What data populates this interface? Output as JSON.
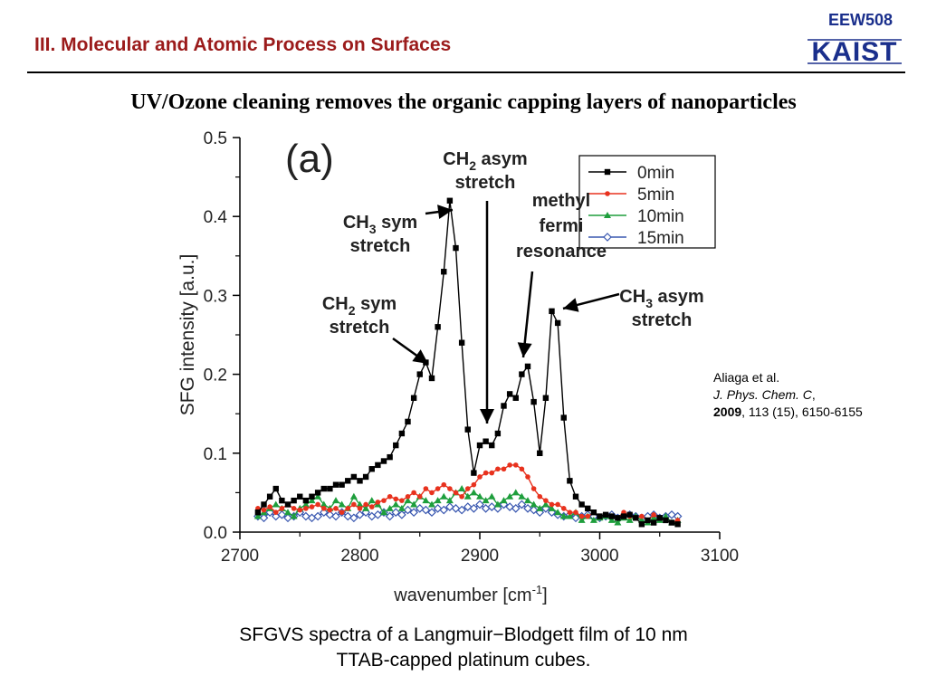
{
  "header": {
    "course_code": "EEW508",
    "logo_text": "KAIST",
    "section_title": "III. Molecular and Atomic Process on Surfaces",
    "brand_color": "#1a2f8c",
    "section_color": "#9b1b1b"
  },
  "headline": "UV/Ozone cleaning removes the organic capping layers of nanoparticles",
  "citation": {
    "authors": "Aliaga et al.",
    "journal": "J. Phys. Chem. C",
    "year": "2009",
    "details": ", 113 (15), 6150-6155"
  },
  "caption": {
    "line1": "SFGVS spectra of a Langmuir−Blodgett film of 10 nm",
    "line2": "TTAB-capped platinum cubes."
  },
  "chart_data": {
    "type": "line",
    "panel_label": "(a)",
    "xlabel": "wavenumber [cm",
    "xlabel_sup": "-1",
    "xlabel_end": "]",
    "ylabel": "SFG intensity [a.u.]",
    "xlim": [
      2700,
      3100
    ],
    "ylim": [
      0.0,
      0.5
    ],
    "xticks": [
      "2700",
      "2800",
      "2900",
      "3000",
      "3100"
    ],
    "yticks": [
      "0.0",
      "0.1",
      "0.2",
      "0.3",
      "0.4",
      "0.5"
    ],
    "grid": false,
    "legend_position": "top-right",
    "x": [
      2715,
      2720,
      2725,
      2730,
      2735,
      2740,
      2745,
      2750,
      2755,
      2760,
      2765,
      2770,
      2775,
      2780,
      2785,
      2790,
      2795,
      2800,
      2805,
      2810,
      2815,
      2820,
      2825,
      2830,
      2835,
      2840,
      2845,
      2850,
      2855,
      2860,
      2865,
      2870,
      2875,
      2880,
      2885,
      2890,
      2895,
      2900,
      2905,
      2910,
      2915,
      2920,
      2925,
      2930,
      2935,
      2940,
      2945,
      2950,
      2955,
      2960,
      2965,
      2970,
      2975,
      2980,
      2985,
      2990,
      2995,
      3000,
      3005,
      3010,
      3015,
      3020,
      3025,
      3030,
      3035,
      3040,
      3045,
      3050,
      3055,
      3060,
      3065
    ],
    "series": [
      {
        "name": "0min",
        "color": "#000000",
        "marker": "square",
        "values": [
          0.025,
          0.035,
          0.045,
          0.055,
          0.04,
          0.035,
          0.04,
          0.045,
          0.04,
          0.045,
          0.05,
          0.055,
          0.055,
          0.06,
          0.06,
          0.065,
          0.07,
          0.065,
          0.07,
          0.08,
          0.085,
          0.09,
          0.095,
          0.11,
          0.125,
          0.14,
          0.17,
          0.2,
          0.215,
          0.195,
          0.26,
          0.33,
          0.42,
          0.36,
          0.24,
          0.13,
          0.075,
          0.11,
          0.115,
          0.11,
          0.125,
          0.16,
          0.175,
          0.17,
          0.2,
          0.21,
          0.165,
          0.1,
          0.17,
          0.28,
          0.265,
          0.145,
          0.065,
          0.045,
          0.035,
          0.03,
          0.025,
          0.02,
          0.022,
          0.02,
          0.018,
          0.02,
          0.022,
          0.018,
          0.01,
          0.015,
          0.012,
          0.018,
          0.015,
          0.012,
          0.01
        ]
      },
      {
        "name": "5min",
        "color": "#e8321e",
        "marker": "circle",
        "values": [
          0.03,
          0.028,
          0.032,
          0.025,
          0.03,
          0.035,
          0.03,
          0.028,
          0.03,
          0.032,
          0.035,
          0.03,
          0.028,
          0.03,
          0.025,
          0.03,
          0.035,
          0.03,
          0.035,
          0.032,
          0.038,
          0.04,
          0.045,
          0.042,
          0.04,
          0.045,
          0.05,
          0.045,
          0.055,
          0.05,
          0.055,
          0.06,
          0.055,
          0.05,
          0.045,
          0.055,
          0.06,
          0.07,
          0.075,
          0.075,
          0.08,
          0.08,
          0.085,
          0.085,
          0.08,
          0.07,
          0.055,
          0.045,
          0.04,
          0.035,
          0.035,
          0.03,
          0.025,
          0.025,
          0.02,
          0.02,
          0.025,
          0.02,
          0.022,
          0.02,
          0.018,
          0.025,
          0.02,
          0.018,
          0.02,
          0.015,
          0.022,
          0.018,
          0.015,
          0.012,
          0.015
        ]
      },
      {
        "name": "10min",
        "color": "#1e9e3c",
        "marker": "triangle",
        "values": [
          0.02,
          0.025,
          0.03,
          0.035,
          0.03,
          0.025,
          0.02,
          0.03,
          0.035,
          0.04,
          0.045,
          0.035,
          0.03,
          0.04,
          0.035,
          0.03,
          0.045,
          0.035,
          0.03,
          0.04,
          0.035,
          0.025,
          0.03,
          0.035,
          0.03,
          0.04,
          0.035,
          0.045,
          0.04,
          0.035,
          0.04,
          0.045,
          0.04,
          0.05,
          0.055,
          0.045,
          0.05,
          0.045,
          0.04,
          0.045,
          0.035,
          0.04,
          0.045,
          0.05,
          0.045,
          0.04,
          0.035,
          0.03,
          0.035,
          0.03,
          0.025,
          0.02,
          0.02,
          0.025,
          0.015,
          0.02,
          0.015,
          0.018,
          0.02,
          0.015,
          0.012,
          0.018,
          0.015,
          0.02,
          0.015,
          0.012,
          0.018,
          0.015,
          0.02,
          0.012,
          0.015
        ]
      },
      {
        "name": "15min",
        "color": "#3a58b0",
        "marker": "diamond-open",
        "values": [
          0.02,
          0.018,
          0.025,
          0.02,
          0.022,
          0.018,
          0.02,
          0.025,
          0.02,
          0.018,
          0.02,
          0.025,
          0.022,
          0.02,
          0.025,
          0.02,
          0.018,
          0.022,
          0.025,
          0.02,
          0.022,
          0.025,
          0.02,
          0.025,
          0.022,
          0.028,
          0.025,
          0.03,
          0.028,
          0.025,
          0.03,
          0.028,
          0.032,
          0.03,
          0.028,
          0.032,
          0.03,
          0.035,
          0.03,
          0.032,
          0.03,
          0.035,
          0.032,
          0.03,
          0.035,
          0.03,
          0.028,
          0.025,
          0.03,
          0.025,
          0.022,
          0.02,
          0.022,
          0.018,
          0.02,
          0.022,
          0.02,
          0.018,
          0.02,
          0.022,
          0.018,
          0.02,
          0.022,
          0.02,
          0.018,
          0.02,
          0.022,
          0.018,
          0.02,
          0.022,
          0.02
        ]
      }
    ],
    "annotations": [
      {
        "id": "ch3-sym",
        "lines": [
          "CH",
          "stretch"
        ],
        "sub": "3",
        "tail": " sym"
      },
      {
        "id": "ch2-asym",
        "lines": [
          "CH",
          "stretch"
        ],
        "sub": "2",
        "tail": " asym"
      },
      {
        "id": "methyl-fermi",
        "lines": [
          "methyl",
          "fermi",
          "resonance"
        ]
      },
      {
        "id": "ch2-sym",
        "lines": [
          "CH",
          "stretch"
        ],
        "sub": "2",
        "tail": " sym"
      },
      {
        "id": "ch3-asym",
        "lines": [
          "CH",
          "stretch"
        ],
        "sub": "3",
        "tail": " asym"
      }
    ]
  }
}
